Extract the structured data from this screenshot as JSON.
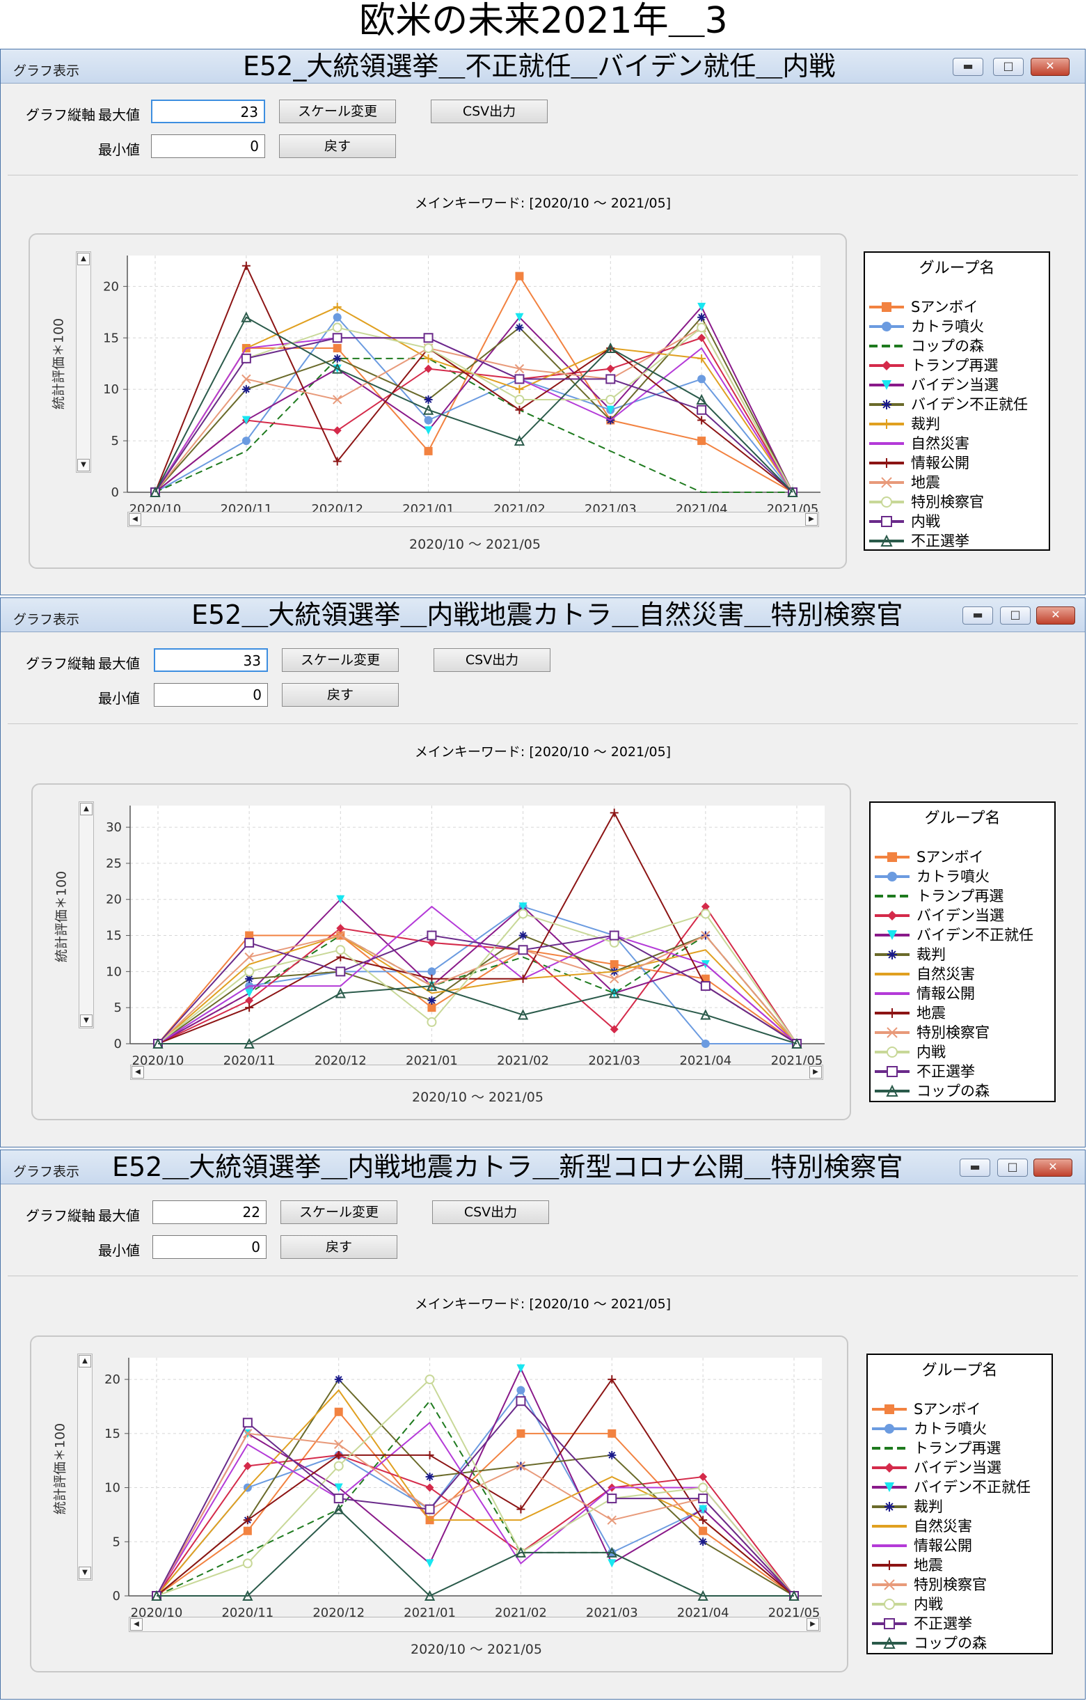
{
  "page_title": "欧米の未来2021年＿3",
  "categories": [
    "2020/10",
    "2020/11",
    "2020/12",
    "2021/01",
    "2021/02",
    "2021/03",
    "2021/04",
    "2021/05"
  ],
  "common": {
    "window_caption": "グラフ表示",
    "axis_label": "グラフ縦軸",
    "max_label": "最大値",
    "min_label": "最小値",
    "scale_button": "スケール変更",
    "csv_button": "CSV出力",
    "reset_button": "戻す",
    "keyword": "メインキーワード: [2020/10 〜 2021/05]",
    "xlabel": "2020/10 〜 2021/05",
    "ylabel": "統計評価＊100",
    "legend_title": "グループ名",
    "minimize_icon": "minimize-icon",
    "maximize_icon": "maximize-icon",
    "close_icon": "close-icon"
  },
  "windows": [
    {
      "title": "E52_大統領選挙＿不正就任＿バイデン就任＿内戦",
      "max_value": "23",
      "min_value": "0"
    },
    {
      "title": "E52＿大統領選挙＿内戦地震カトラ＿自然災害＿特別検察官",
      "max_value": "33",
      "min_value": "0"
    },
    {
      "title": "E52＿大統領選挙＿内戦地震カトラ＿新型コロナ公開＿特別検察官",
      "max_value": "22",
      "min_value": "0"
    }
  ],
  "chart_data": [
    {
      "type": "line",
      "categories": [
        "2020/10",
        "2020/11",
        "2020/12",
        "2021/01",
        "2021/02",
        "2021/03",
        "2021/04",
        "2021/05"
      ],
      "ylim": [
        0,
        23
      ],
      "yticks": [
        0,
        5,
        10,
        15,
        20
      ],
      "grid": true,
      "legend_position": "right",
      "xlabel": "2020/10 〜 2021/05",
      "ylabel": "統計評価＊100",
      "series": [
        {
          "name": "Sアンボイ",
          "color": "#f28240",
          "marker": "square",
          "values": [
            0,
            14,
            14,
            4,
            21,
            7,
            5,
            0
          ]
        },
        {
          "name": "カトラ噴火",
          "color": "#6b9be0",
          "marker": "circle",
          "values": [
            0,
            5,
            17,
            7,
            11,
            8,
            11,
            0
          ]
        },
        {
          "name": "コップの森",
          "color": "#1e7a1e",
          "marker": "none",
          "dash": true,
          "values": [
            0,
            4,
            13,
            13,
            8,
            4,
            0,
            0
          ]
        },
        {
          "name": "トランプ再選",
          "color": "#d42a4a",
          "marker": "diamond",
          "values": [
            0,
            7,
            6,
            12,
            11,
            12,
            15,
            0
          ]
        },
        {
          "name": "バイデン当選",
          "color": "#8a1a8a",
          "marker": "triangle-down",
          "fill": "#18e6f0",
          "values": [
            0,
            7,
            12,
            6,
            17,
            8,
            18,
            0
          ]
        },
        {
          "name": "バイデン不正就任",
          "color": "#6a6a2a",
          "marker": "star",
          "fill": "#1a1a8a",
          "values": [
            0,
            10,
            13,
            9,
            16,
            7,
            17,
            0
          ]
        },
        {
          "name": "裁判",
          "color": "#e0a020",
          "marker": "plus",
          "values": [
            0,
            14,
            18,
            13,
            10,
            14,
            13,
            0
          ]
        },
        {
          "name": "自然災害",
          "color": "#b43ad8",
          "marker": "none",
          "values": [
            0,
            14,
            15,
            15,
            11,
            7,
            14,
            0
          ]
        },
        {
          "name": "情報公開",
          "color": "#8c1414",
          "marker": "plus",
          "values": [
            0,
            22,
            3,
            14,
            8,
            14,
            7,
            0
          ]
        },
        {
          "name": "地震",
          "color": "#e89a7a",
          "marker": "cross",
          "values": [
            0,
            11,
            9,
            14,
            12,
            11,
            16,
            0
          ]
        },
        {
          "name": "特別検察官",
          "color": "#c8d898",
          "marker": "circle-open",
          "values": [
            0,
            13,
            16,
            14,
            9,
            9,
            16,
            0
          ]
        },
        {
          "name": "内戦",
          "color": "#6a2a8a",
          "marker": "square-open",
          "values": [
            0,
            13,
            15,
            15,
            11,
            11,
            8,
            0
          ]
        },
        {
          "name": "不正選挙",
          "color": "#2a5a4a",
          "marker": "triangle-open",
          "values": [
            0,
            17,
            12,
            8,
            5,
            14,
            9,
            0
          ]
        }
      ]
    },
    {
      "type": "line",
      "categories": [
        "2020/10",
        "2020/11",
        "2020/12",
        "2021/01",
        "2021/02",
        "2021/03",
        "2021/04",
        "2021/05"
      ],
      "ylim": [
        0,
        33
      ],
      "yticks": [
        0,
        5,
        10,
        15,
        20,
        25,
        30
      ],
      "grid": true,
      "legend_position": "right",
      "xlabel": "2020/10 〜 2021/05",
      "ylabel": "統計評価＊100",
      "series": [
        {
          "name": "Sアンボイ",
          "color": "#f28240",
          "marker": "square",
          "values": [
            0,
            15,
            15,
            5,
            13,
            11,
            9,
            0
          ]
        },
        {
          "name": "カトラ噴火",
          "color": "#6b9be0",
          "marker": "circle",
          "values": [
            0,
            8,
            10,
            10,
            19,
            15,
            0,
            0
          ]
        },
        {
          "name": "トランプ再選",
          "color": "#1e7a1e",
          "marker": "none",
          "dash": true,
          "values": [
            0,
            7,
            15,
            8,
            12,
            7,
            15,
            0
          ]
        },
        {
          "name": "バイデン当選",
          "color": "#d42a4a",
          "marker": "diamond",
          "values": [
            0,
            6,
            16,
            14,
            13,
            2,
            19,
            0
          ]
        },
        {
          "name": "バイデン不正就任",
          "color": "#8a1a8a",
          "marker": "triangle-down",
          "fill": "#18e6f0",
          "values": [
            0,
            7,
            20,
            8,
            19,
            7,
            11,
            0
          ]
        },
        {
          "name": "裁判",
          "color": "#6a6a2a",
          "marker": "star",
          "fill": "#1a1a8a",
          "values": [
            0,
            9,
            10,
            6,
            15,
            10,
            15,
            0
          ]
        },
        {
          "name": "自然災害",
          "color": "#e0a020",
          "marker": "none",
          "values": [
            0,
            11,
            15,
            7,
            9,
            10,
            13,
            0
          ]
        },
        {
          "name": "情報公開",
          "color": "#b43ad8",
          "marker": "none",
          "values": [
            0,
            8,
            8,
            19,
            9,
            15,
            11,
            0
          ]
        },
        {
          "name": "地震",
          "color": "#8c1414",
          "marker": "plus",
          "values": [
            0,
            5,
            12,
            9,
            9,
            32,
            8,
            0
          ]
        },
        {
          "name": "特別検察官",
          "color": "#e89a7a",
          "marker": "cross",
          "values": [
            0,
            12,
            15,
            8,
            13,
            9,
            15,
            0
          ]
        },
        {
          "name": "内戦",
          "color": "#c8d898",
          "marker": "circle-open",
          "values": [
            0,
            10,
            13,
            3,
            18,
            14,
            18,
            0
          ]
        },
        {
          "name": "不正選挙",
          "color": "#6a2a8a",
          "marker": "square-open",
          "values": [
            0,
            14,
            10,
            15,
            13,
            15,
            8,
            0
          ]
        },
        {
          "name": "コップの森",
          "color": "#2a5a4a",
          "marker": "triangle-open",
          "values": [
            0,
            0,
            7,
            8,
            4,
            7,
            4,
            0
          ]
        }
      ]
    },
    {
      "type": "line",
      "categories": [
        "2020/10",
        "2020/11",
        "2020/12",
        "2021/01",
        "2021/02",
        "2021/03",
        "2021/04",
        "2021/05"
      ],
      "ylim": [
        0,
        22
      ],
      "yticks": [
        0,
        5,
        10,
        15,
        20
      ],
      "grid": true,
      "legend_position": "right",
      "xlabel": "2020/10 〜 2021/05",
      "ylabel": "統計評価＊100",
      "series": [
        {
          "name": "Sアンボイ",
          "color": "#f28240",
          "marker": "square",
          "values": [
            0,
            6,
            17,
            7,
            15,
            15,
            6,
            0
          ]
        },
        {
          "name": "カトラ噴火",
          "color": "#6b9be0",
          "marker": "circle",
          "values": [
            0,
            10,
            13,
            8,
            19,
            4,
            8,
            0
          ]
        },
        {
          "name": "トランプ再選",
          "color": "#1e7a1e",
          "marker": "none",
          "dash": true,
          "values": [
            0,
            4,
            8,
            18,
            4,
            4,
            0,
            0
          ]
        },
        {
          "name": "バイデン当選",
          "color": "#d42a4a",
          "marker": "diamond",
          "values": [
            0,
            12,
            13,
            10,
            4,
            10,
            11,
            0
          ]
        },
        {
          "name": "バイデン不正就任",
          "color": "#8a1a8a",
          "marker": "triangle-down",
          "fill": "#18e6f0",
          "values": [
            0,
            15,
            10,
            3,
            21,
            3,
            8,
            0
          ]
        },
        {
          "name": "裁判",
          "color": "#6a6a2a",
          "marker": "star",
          "fill": "#1a1a8a",
          "values": [
            0,
            7,
            20,
            11,
            12,
            13,
            5,
            0
          ]
        },
        {
          "name": "自然災害",
          "color": "#e0a020",
          "marker": "none",
          "values": [
            0,
            10,
            19,
            7,
            7,
            11,
            7,
            0
          ]
        },
        {
          "name": "情報公開",
          "color": "#b43ad8",
          "marker": "none",
          "values": [
            0,
            14,
            9,
            16,
            3,
            10,
            10,
            0
          ]
        },
        {
          "name": "地震",
          "color": "#8c1414",
          "marker": "plus",
          "values": [
            0,
            7,
            13,
            13,
            8,
            20,
            7,
            0
          ]
        },
        {
          "name": "特別検察官",
          "color": "#e89a7a",
          "marker": "cross",
          "values": [
            0,
            15,
            14,
            8,
            12,
            7,
            9,
            0
          ]
        },
        {
          "name": "内戦",
          "color": "#c8d898",
          "marker": "circle-open",
          "values": [
            0,
            3,
            12,
            20,
            4,
            9,
            10,
            0
          ]
        },
        {
          "name": "不正選挙",
          "color": "#6a2a8a",
          "marker": "square-open",
          "values": [
            0,
            16,
            9,
            8,
            18,
            9,
            9,
            0
          ]
        },
        {
          "name": "コップの森",
          "color": "#2a5a4a",
          "marker": "triangle-open",
          "values": [
            0,
            0,
            8,
            0,
            4,
            4,
            0,
            0
          ]
        }
      ]
    }
  ]
}
